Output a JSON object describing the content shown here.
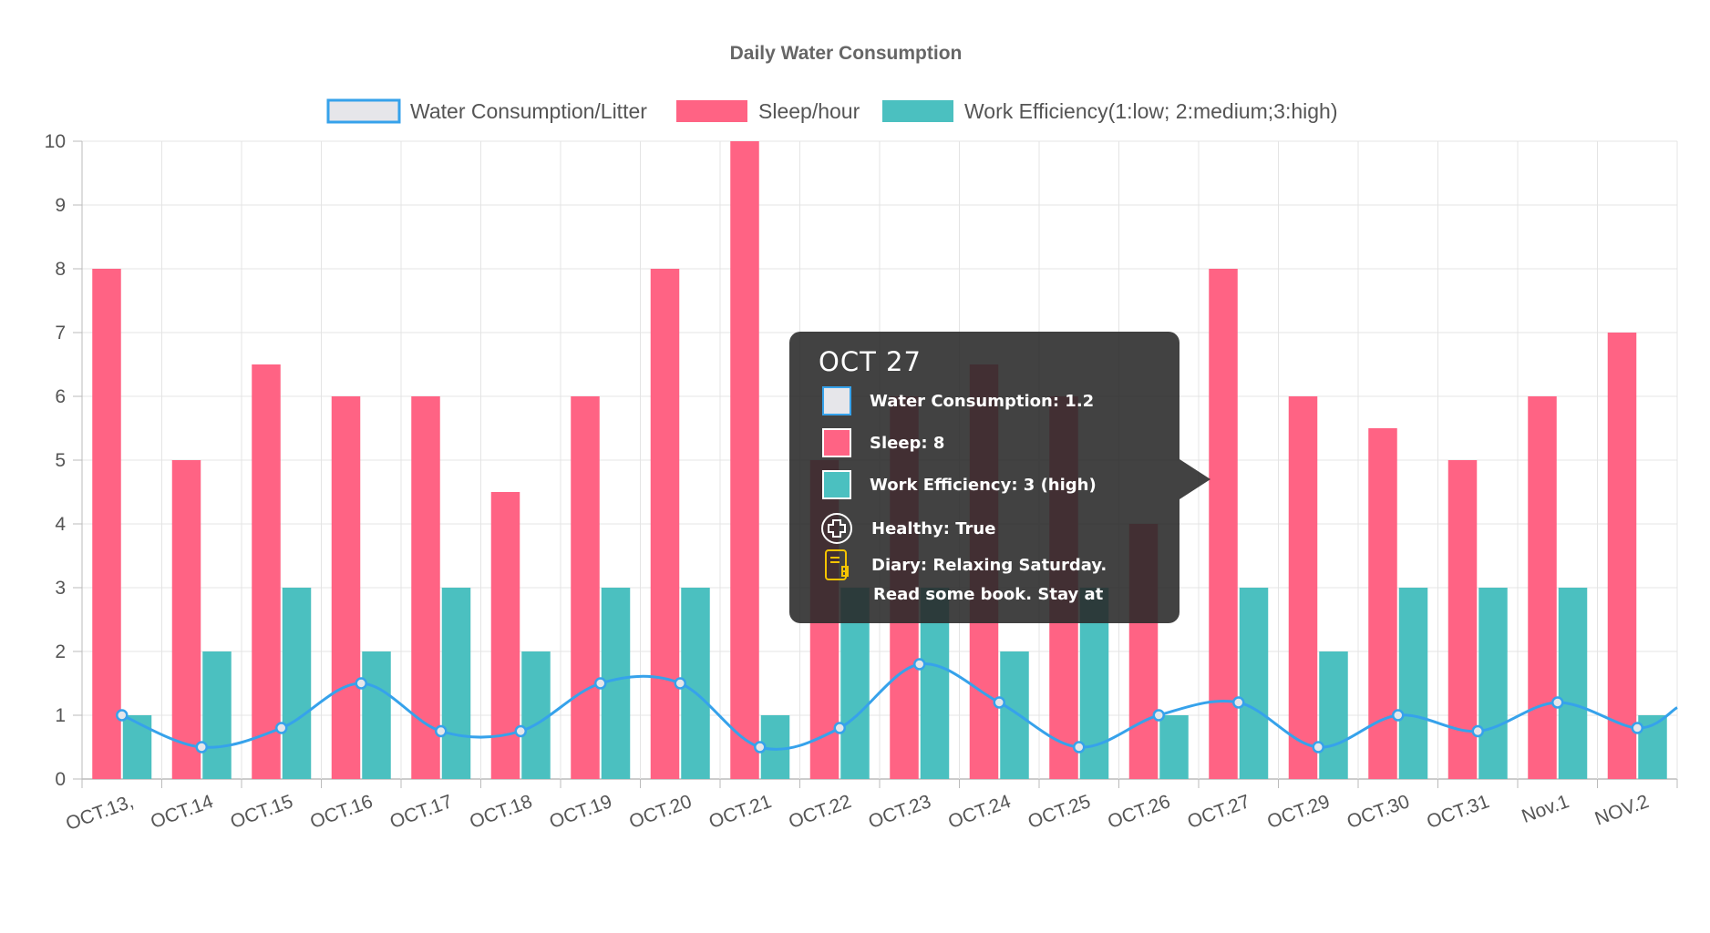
{
  "chart_data": {
    "type": "bar",
    "title": "Daily Water Consumption",
    "categories": [
      "OCT.13,",
      "OCT.14",
      "OCT.15",
      "OCT.16",
      "OCT.17",
      "OCT.18",
      "OCT.19",
      "OCT.20",
      "OCT.21",
      "OCT.22",
      "OCT.23",
      "OCT.24",
      "OCT.25",
      "OCT.26",
      "OCT.27",
      "OCT.29",
      "OCT.30",
      "OCT.31",
      "Nov.1",
      "NOV.2"
    ],
    "series": [
      {
        "name": "Water Consumption/Litter",
        "kind": "line",
        "color": "#36a2eb",
        "fill": "#e6e6ea",
        "values": [
          1.0,
          0.5,
          0.8,
          1.5,
          0.75,
          0.75,
          1.5,
          1.5,
          0.5,
          0.8,
          1.8,
          1.2,
          0.5,
          1.0,
          1.2,
          0.5,
          1.0,
          0.75,
          1.2,
          0.8
        ]
      },
      {
        "name": "Sleep/hour",
        "kind": "bar",
        "color": "#ff6384",
        "values": [
          8,
          5,
          6.5,
          6,
          6,
          4.5,
          6,
          8,
          10,
          5,
          6,
          6.5,
          6,
          4,
          8,
          6,
          5.5,
          5,
          6,
          7
        ]
      },
      {
        "name": "Work Efficiency(1:low; 2:medium;3:high)",
        "kind": "bar",
        "color": "#4bc0c0",
        "values": [
          1,
          2,
          3,
          2,
          3,
          2,
          3,
          3,
          1,
          3,
          3,
          2,
          3,
          1,
          3,
          2,
          3,
          3,
          3,
          1
        ]
      }
    ],
    "y_ticks": [
      "0",
      "1",
      "2",
      "3",
      "4",
      "5",
      "6",
      "7",
      "8",
      "9",
      "10"
    ],
    "ylim": [
      0,
      10
    ],
    "grid": true,
    "legend": "top-center",
    "last_point_trail": 1.12
  },
  "tooltip": {
    "title": "OCT 27",
    "rows": [
      {
        "label": "Water Consumption: 1.2",
        "swatch": "#e6e6ea",
        "border": "#36a2eb"
      },
      {
        "label": "Sleep: 8",
        "swatch": "#ff6384",
        "border": "#ffffff"
      },
      {
        "label": "Work Efficiency: 3 (high)",
        "swatch": "#4bc0c0",
        "border": "#ffffff"
      }
    ],
    "healthy_label": "Healthy: True",
    "healthy_icon": "plus-circle-icon",
    "diary_label": "Diary: Relaxing Saturday.",
    "diary_label_2": "Read some book. Stay at",
    "diary_icon": "notebook-icon",
    "diary_icon_color": "#f5c400"
  }
}
